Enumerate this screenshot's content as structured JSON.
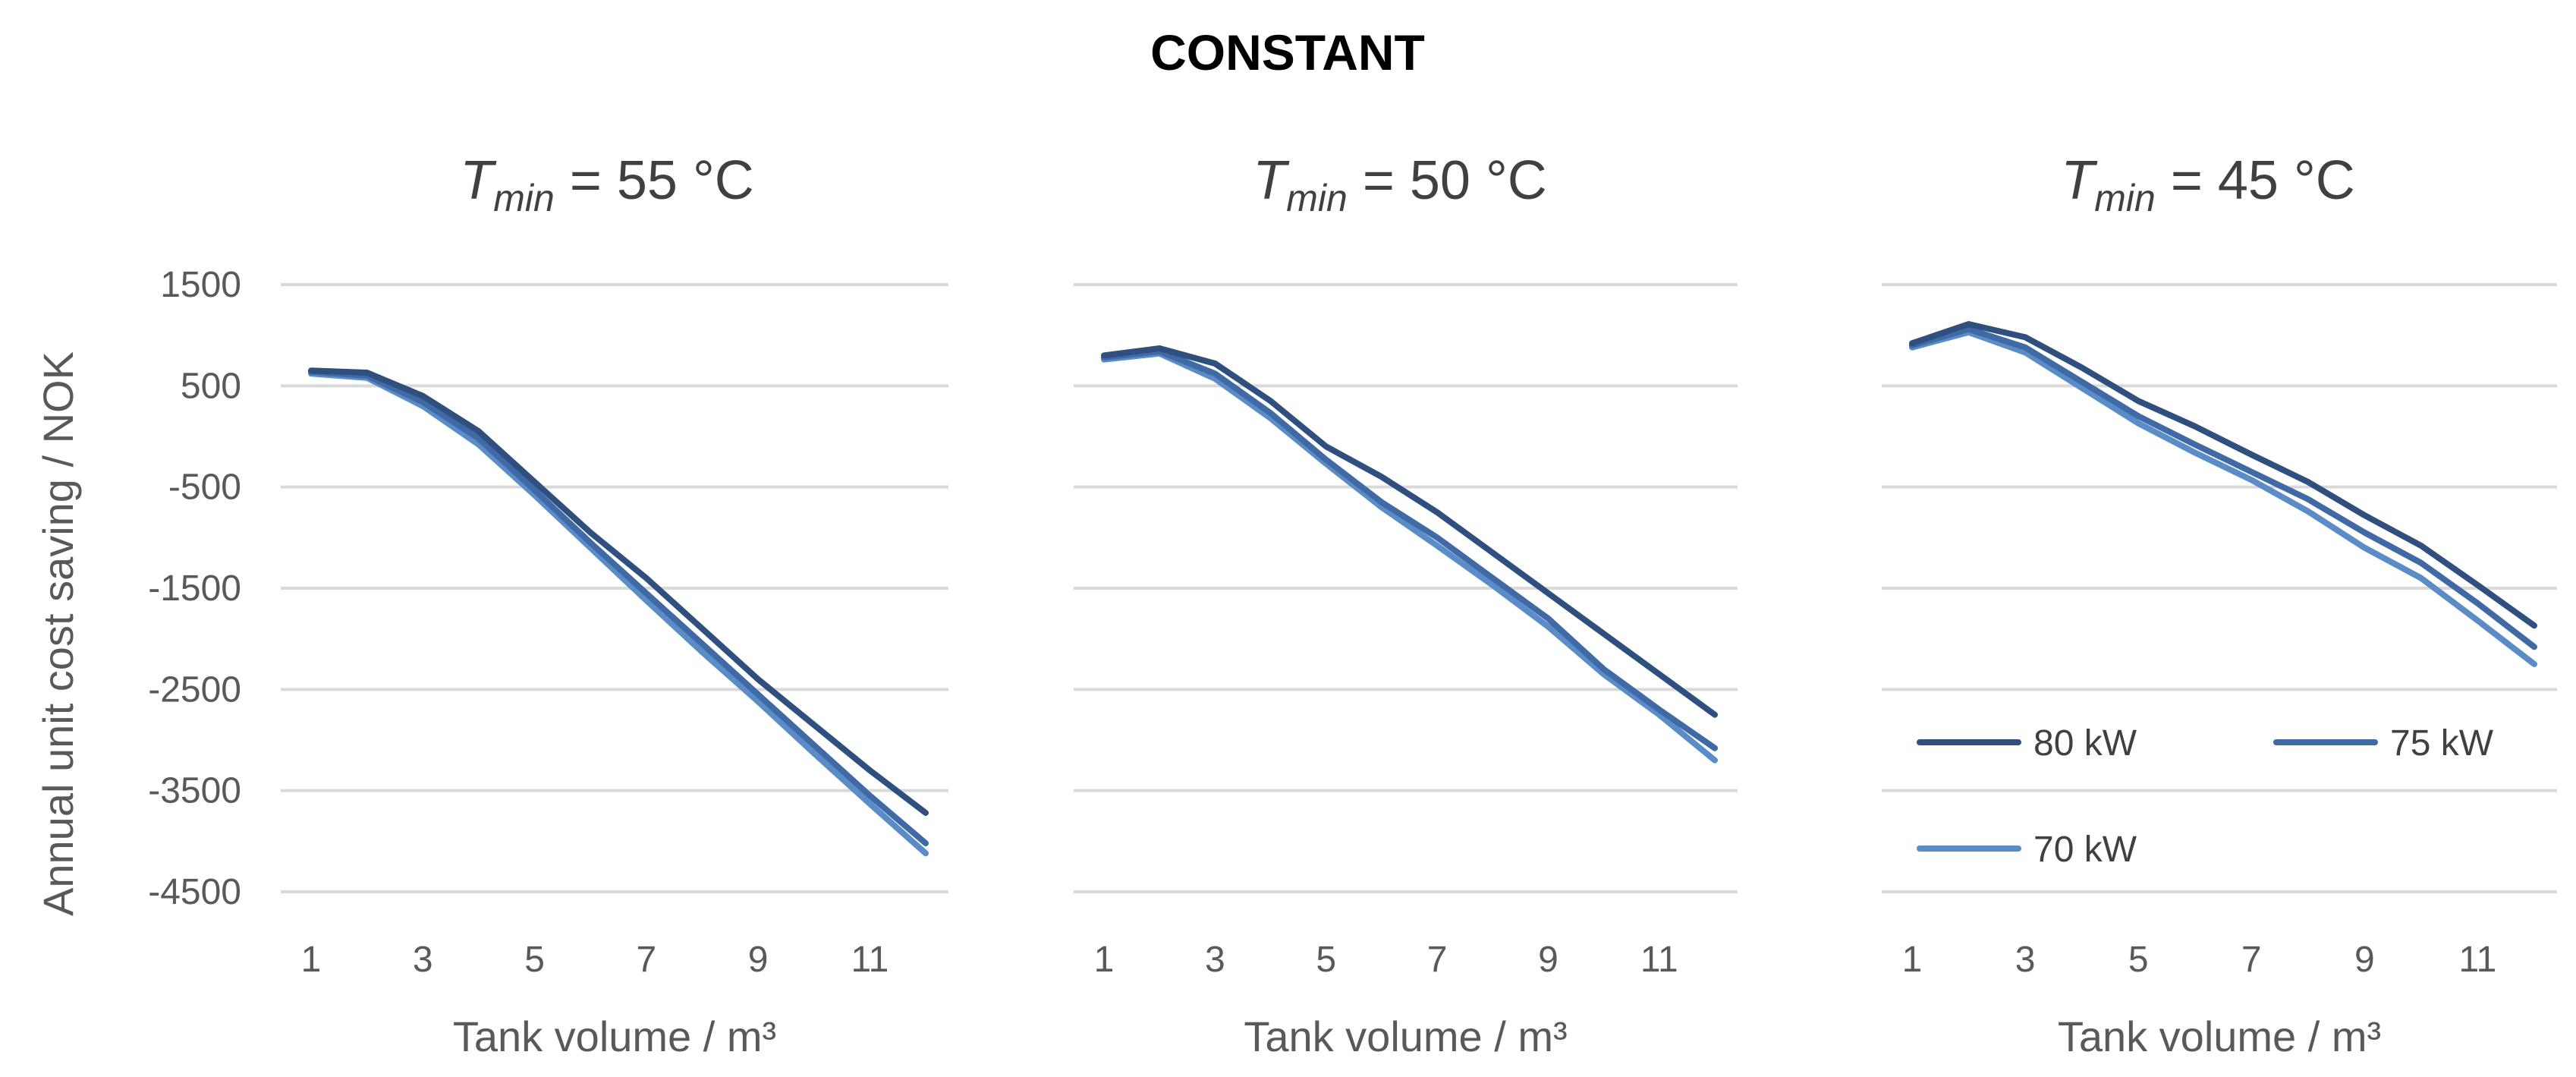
{
  "chart_data": {
    "type": "line",
    "title": "CONSTANT",
    "ylabel": "Annual unit cost saving / NOK",
    "xlabel": "Tank volume / m³",
    "ylim": [
      -4500,
      1500
    ],
    "xlim": [
      1,
      12
    ],
    "y_ticks": [
      1500,
      500,
      -500,
      -1500,
      -2500,
      -3500,
      -4500
    ],
    "x_ticks": [
      1,
      3,
      5,
      7,
      9,
      11
    ],
    "x": [
      1,
      2,
      3,
      4,
      5,
      6,
      7,
      8,
      9,
      10,
      11,
      12
    ],
    "series_styles": [
      {
        "name": "80 kW",
        "color": "#2f4f7f"
      },
      {
        "name": "75 kW",
        "color": "#3f6aa6"
      },
      {
        "name": "70 kW",
        "color": "#5a8cc8"
      }
    ],
    "legend": {
      "panel_index": 2,
      "placement": "lower-right",
      "entries": [
        "80 kW",
        "75 kW",
        "70 kW"
      ]
    },
    "panels": [
      {
        "title_var": "T",
        "title_sub": "min",
        "title_rest": " = 55 °C",
        "series": [
          {
            "name": "80 kW",
            "values": [
              650,
              630,
              400,
              50,
              -450,
              -950,
              -1400,
              -1900,
              -2400,
              -2850,
              -3300,
              -3720
            ]
          },
          {
            "name": "75 kW",
            "values": [
              640,
              600,
              340,
              -20,
              -530,
              -1050,
              -1550,
              -2050,
              -2550,
              -3050,
              -3550,
              -4020
            ]
          },
          {
            "name": "70 kW",
            "values": [
              620,
              580,
              300,
              -80,
              -580,
              -1100,
              -1620,
              -2130,
              -2620,
              -3130,
              -3630,
              -4120
            ]
          }
        ]
      },
      {
        "title_var": "T",
        "title_sub": "min",
        "title_rest": " = 50 °C",
        "series": [
          {
            "name": "80 kW",
            "values": [
              800,
              870,
              720,
              350,
              -100,
              -400,
              -750,
              -1150,
              -1550,
              -1950,
              -2350,
              -2750
            ]
          },
          {
            "name": "75 kW",
            "values": [
              780,
              840,
              620,
              230,
              -230,
              -650,
              -1000,
              -1400,
              -1800,
              -2300,
              -2700,
              -3080
            ]
          },
          {
            "name": "70 kW",
            "values": [
              760,
              820,
              570,
              180,
              -270,
              -700,
              -1080,
              -1470,
              -1880,
              -2350,
              -2750,
              -3200
            ]
          }
        ]
      },
      {
        "title_var": "T",
        "title_sub": "min",
        "title_rest": " = 45 °C",
        "series": [
          {
            "name": "80 kW",
            "values": [
              920,
              1110,
              980,
              680,
              350,
              100,
              -180,
              -450,
              -780,
              -1080,
              -1470,
              -1870
            ]
          },
          {
            "name": "75 kW",
            "values": [
              900,
              1060,
              880,
              540,
              200,
              -80,
              -350,
              -620,
              -950,
              -1250,
              -1650,
              -2080
            ]
          },
          {
            "name": "70 kW",
            "values": [
              880,
              1030,
              830,
              480,
              130,
              -160,
              -430,
              -740,
              -1100,
              -1400,
              -1820,
              -2250
            ]
          }
        ]
      }
    ]
  }
}
